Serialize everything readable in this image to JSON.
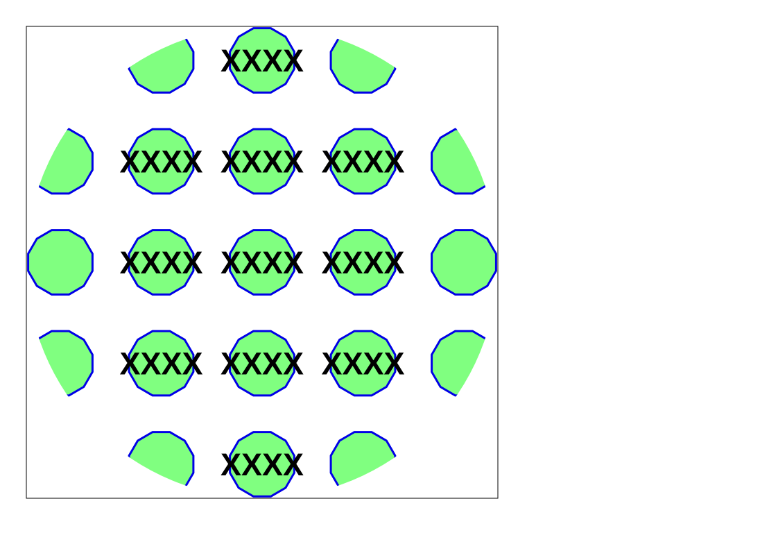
{
  "colors": {
    "fill": "#80ff80",
    "stroke": "#0000e6",
    "label": "#000000",
    "frame": "#000000"
  },
  "cell_label": "XXXX",
  "grid": {
    "rows": [
      {
        "row": 0,
        "cells": [
          {
            "col": 1,
            "labeled": false
          },
          {
            "col": 2,
            "labeled": true
          },
          {
            "col": 3,
            "labeled": false
          }
        ]
      },
      {
        "row": 1,
        "cells": [
          {
            "col": 0,
            "labeled": false
          },
          {
            "col": 1,
            "labeled": true
          },
          {
            "col": 2,
            "labeled": true
          },
          {
            "col": 3,
            "labeled": true
          },
          {
            "col": 4,
            "labeled": false
          }
        ]
      },
      {
        "row": 2,
        "cells": [
          {
            "col": 0,
            "labeled": false
          },
          {
            "col": 1,
            "labeled": true
          },
          {
            "col": 2,
            "labeled": true
          },
          {
            "col": 3,
            "labeled": true
          },
          {
            "col": 4,
            "labeled": false
          }
        ]
      },
      {
        "row": 3,
        "cells": [
          {
            "col": 0,
            "labeled": false
          },
          {
            "col": 1,
            "labeled": true
          },
          {
            "col": 2,
            "labeled": true
          },
          {
            "col": 3,
            "labeled": true
          },
          {
            "col": 4,
            "labeled": false
          }
        ]
      },
      {
        "row": 4,
        "cells": [
          {
            "col": 1,
            "labeled": false
          },
          {
            "col": 2,
            "labeled": true
          },
          {
            "col": 3,
            "labeled": false
          }
        ]
      }
    ]
  }
}
